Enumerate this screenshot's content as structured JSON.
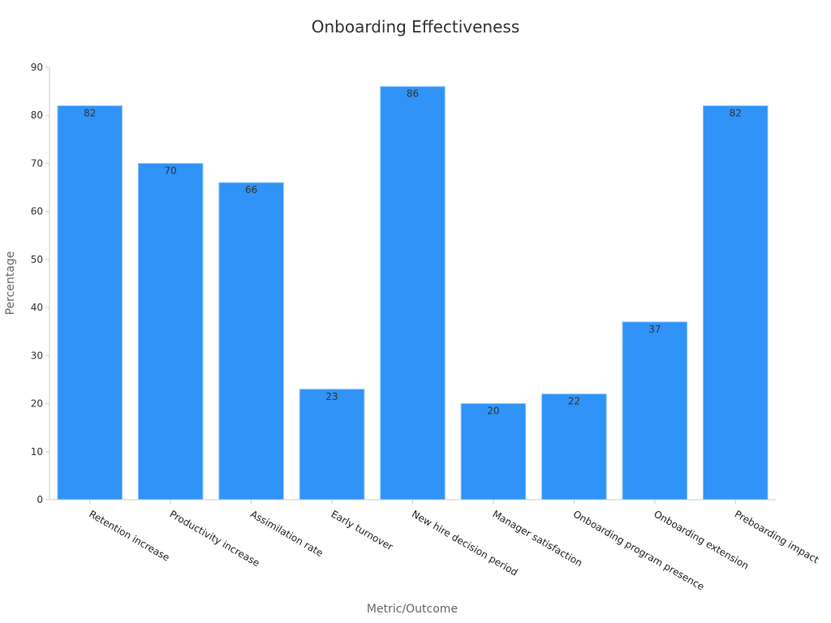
{
  "chart_data": {
    "type": "bar",
    "title": "Onboarding Effectiveness",
    "xlabel": "Metric/Outcome",
    "ylabel": "Percentage",
    "categories": [
      "Retention increase",
      "Productivity increase",
      "Assimilation rate",
      "Early turnover",
      "New hire decision period",
      "Manager satisfaction",
      "Onboarding program presence",
      "Onboarding extension",
      "Preboarding impact"
    ],
    "values": [
      82,
      70,
      66,
      23,
      86,
      20,
      22,
      37,
      82
    ],
    "ylim": [
      0,
      90
    ],
    "yticks": [
      0,
      10,
      20,
      30,
      40,
      50,
      60,
      70,
      80,
      90
    ],
    "bar_color": "#2f93f7",
    "grid": false,
    "legend": "none"
  }
}
